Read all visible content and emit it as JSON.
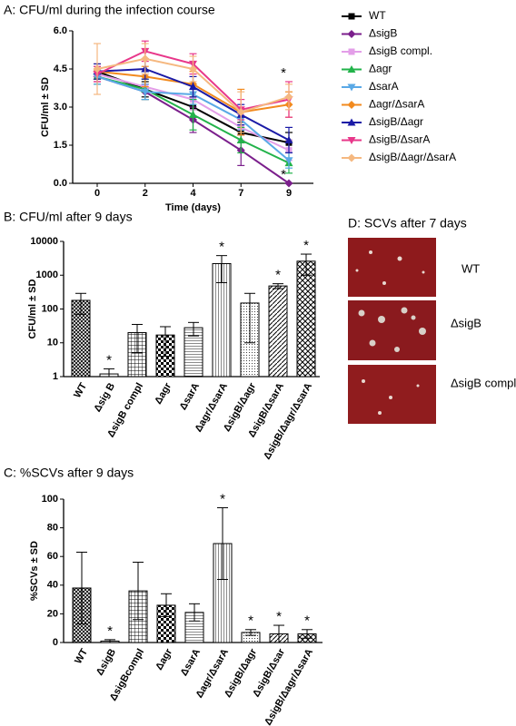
{
  "chart_data": [
    {
      "type": "line",
      "title": "A: CFU/ml during the infection course",
      "x_label": "Time (days)",
      "y_label": "CFU/ml ± SD",
      "categories": [
        "0",
        "2",
        "4",
        "7",
        "9"
      ],
      "ylim": [
        0,
        6
      ],
      "yticks": [
        {
          "value": 0,
          "label": "0.0"
        },
        {
          "value": 1.5,
          "label": "1.5"
        },
        {
          "value": 3,
          "label": "3.0"
        },
        {
          "value": 4.5,
          "label": "4.5"
        },
        {
          "value": 6,
          "label": "6.0"
        }
      ],
      "series": [
        {
          "name": "WT",
          "color": "#000000",
          "marker": "square",
          "values": [
            4.4,
            3.7,
            3.0,
            2.0,
            1.6
          ],
          "errors": [
            0.2,
            0.3,
            0.4,
            0.4,
            0.4
          ]
        },
        {
          "name": "ΔsigB",
          "color": "#7b1f8c",
          "marker": "diamond",
          "values": [
            4.2,
            3.6,
            2.5,
            1.3,
            0.0
          ],
          "errors": [
            0.2,
            0.3,
            0.5,
            0.6,
            0
          ],
          "significance": "*"
        },
        {
          "name": "ΔsigB compl.",
          "color": "#e39ee8",
          "marker": "square",
          "values": [
            4.3,
            3.8,
            3.3,
            2.2,
            1.3
          ],
          "errors": [
            0.3,
            0.5,
            0.4,
            0.5,
            0.4
          ]
        },
        {
          "name": "Δagr",
          "color": "#22b34a",
          "marker": "triangle-up",
          "values": [
            4.2,
            3.7,
            2.7,
            1.7,
            0.8
          ],
          "errors": [
            0.3,
            0.4,
            0.6,
            0.5,
            0.4
          ]
        },
        {
          "name": "ΔsarA",
          "color": "#5aa9e6",
          "marker": "triangle-down",
          "values": [
            4.2,
            3.6,
            3.5,
            2.5,
            0.9
          ],
          "errors": [
            0.3,
            0.3,
            0.4,
            0.4,
            0.3
          ]
        },
        {
          "name": "Δagr/ΔsarA",
          "color": "#f28a1e",
          "marker": "diamond",
          "values": [
            4.4,
            4.2,
            3.9,
            2.8,
            3.1
          ],
          "errors": [
            0.3,
            0.4,
            0.5,
            0.9,
            0.5
          ]
        },
        {
          "name": "ΔsigB/Δagr",
          "color": "#1a1aa6",
          "marker": "triangle-up",
          "values": [
            4.4,
            4.5,
            3.8,
            2.7,
            1.7
          ],
          "errors": [
            0.3,
            0.4,
            0.4,
            0.4,
            0.5
          ]
        },
        {
          "name": "ΔsigB/ΔsarA",
          "color": "#e8378a",
          "marker": "triangle-down",
          "values": [
            4.3,
            5.2,
            4.7,
            2.9,
            3.3
          ],
          "errors": [
            0.3,
            0.4,
            0.4,
            0.4,
            0.7
          ],
          "significance": "*"
        },
        {
          "name": "ΔsigB/Δagr/ΔsarA",
          "color": "#f5b880",
          "marker": "diamond",
          "values": [
            4.5,
            4.9,
            4.5,
            2.8,
            3.4
          ],
          "errors": [
            1.0,
            0.6,
            0.5,
            0.8,
            0.5
          ]
        }
      ]
    },
    {
      "type": "bar",
      "title": "B: CFU/ml after 9 days",
      "y_label": "CFU/ml ± SD",
      "log_scale": true,
      "categories": [
        "WT",
        "Δsig B",
        "ΔsigB compl",
        "Δagr",
        "ΔsarA",
        "Δagr/ΔsarA",
        "ΔsigB/Δagr",
        "ΔsigB/ΔsarA",
        "ΔsigB/Δagr/ΔsarA"
      ],
      "values": [
        180,
        1.2,
        20,
        17,
        28,
        2200,
        150,
        480,
        2600
      ],
      "errors": [
        110,
        0.5,
        15,
        13,
        12,
        1600,
        140,
        80,
        1600
      ],
      "significance": [
        null,
        "*",
        null,
        null,
        null,
        "*",
        null,
        "*",
        "*"
      ],
      "ylim": [
        1,
        10000
      ],
      "yticks": [
        1,
        10,
        100,
        1000,
        10000
      ]
    },
    {
      "type": "bar",
      "title": "C: %SCVs after 9 days",
      "y_label": "%SCVs ± SD",
      "categories": [
        "WT",
        "ΔsigB",
        "ΔsigBcompl",
        "Δagr",
        "ΔsarA",
        "Δagr/ΔsarA",
        "ΔsigB/Δagr",
        "ΔsigB/Δsar",
        "ΔsigB/Δagr/ΔsarA"
      ],
      "values": [
        38,
        1,
        36,
        26,
        21,
        69,
        7,
        6,
        6
      ],
      "errors": [
        25,
        1,
        20,
        8,
        6,
        25,
        2,
        6,
        3
      ],
      "significance": [
        null,
        "*",
        null,
        null,
        null,
        "*",
        "*",
        "*",
        "*"
      ],
      "ylim": [
        0,
        100
      ],
      "yticks": [
        0,
        20,
        40,
        60,
        80,
        100
      ]
    }
  ],
  "image_panel": {
    "title": "D: SCVs after 7 days",
    "labels": [
      "WT",
      "ΔsigB",
      "ΔsigB compl."
    ]
  }
}
